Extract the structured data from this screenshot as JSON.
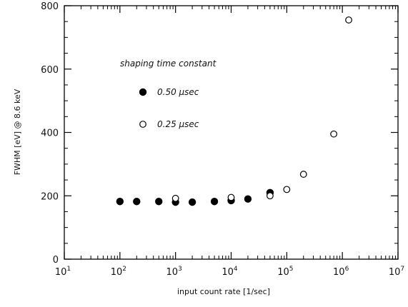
{
  "chart_data": {
    "type": "scatter",
    "xlabel": "input count rate [1/sec]",
    "ylabel": "FWHM [eV] @ 8.6 keV",
    "x_scale": "log",
    "xlim": [
      10,
      10000000
    ],
    "ylim": [
      0,
      800
    ],
    "x_ticks": [
      {
        "value": 10,
        "base": "10",
        "exp": "1"
      },
      {
        "value": 100,
        "base": "10",
        "exp": "2"
      },
      {
        "value": 1000,
        "base": "10",
        "exp": "3"
      },
      {
        "value": 10000,
        "base": "10",
        "exp": "4"
      },
      {
        "value": 100000,
        "base": "10",
        "exp": "5"
      },
      {
        "value": 1000000,
        "base": "10",
        "exp": "6"
      },
      {
        "value": 10000000,
        "base": "10",
        "exp": "7"
      }
    ],
    "y_ticks": [
      0,
      200,
      400,
      600,
      800
    ],
    "grid": false,
    "legend": {
      "title": "shaping time constant",
      "placement": "upper-left"
    },
    "series": [
      {
        "name": "0.50 μsec",
        "marker": "filled-circle",
        "color": "#000000",
        "x": [
          100,
          200,
          500,
          1000,
          2000,
          5000,
          10000,
          20000,
          50000
        ],
        "y": [
          182,
          182,
          182,
          180,
          180,
          182,
          185,
          190,
          210
        ]
      },
      {
        "name": "0.25 μsec",
        "marker": "open-circle",
        "color": "#000000",
        "x": [
          1000,
          10000,
          50000,
          100000,
          200000,
          700000,
          1300000
        ],
        "y": [
          192,
          195,
          200,
          220,
          268,
          395,
          755
        ]
      }
    ]
  }
}
